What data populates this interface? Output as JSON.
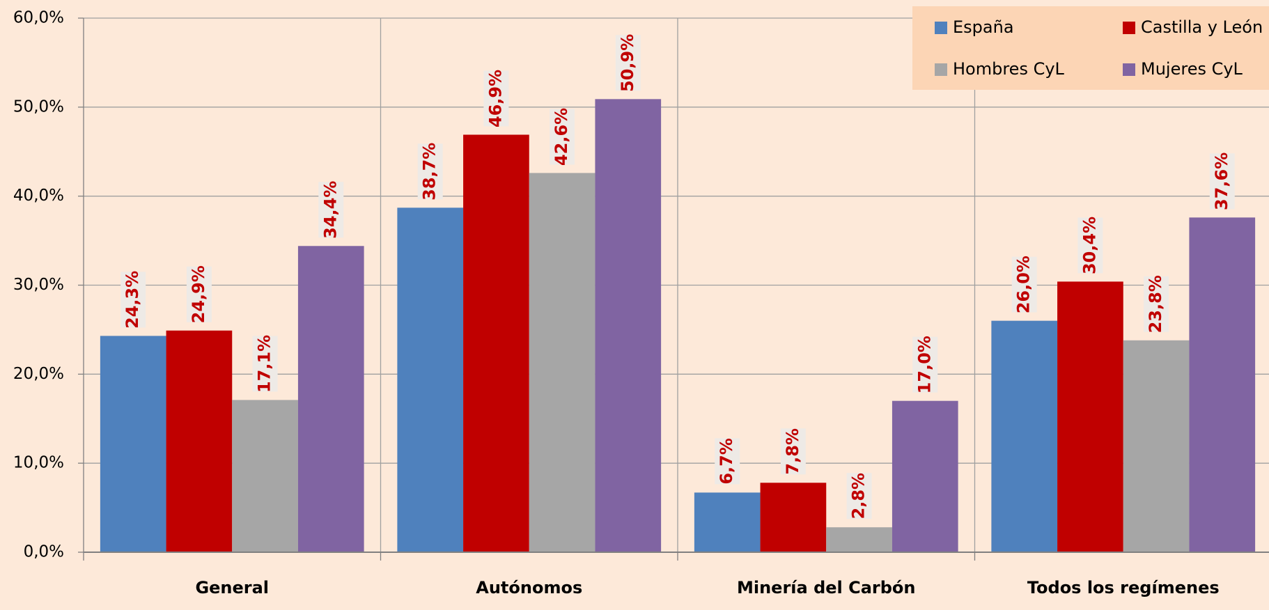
{
  "chart_data": {
    "type": "bar",
    "categories": [
      "General",
      "Autónomos",
      "Minería del Carbón",
      "Todos los regímenes"
    ],
    "series": [
      {
        "name": "España",
        "color": "#4f81bd",
        "values": [
          24.3,
          38.7,
          6.7,
          26.0
        ],
        "value_labels": [
          "24,3%",
          "38,7%",
          "6,7%",
          "26,0%"
        ]
      },
      {
        "name": "Castilla y León",
        "color": "#c00000",
        "values": [
          24.9,
          46.9,
          7.8,
          30.4
        ],
        "value_labels": [
          "24,9%",
          "46,9%",
          "7,8%",
          "30,4%"
        ]
      },
      {
        "name": "Hombres CyL",
        "color": "#a6a6a6",
        "values": [
          17.1,
          42.6,
          2.8,
          23.8
        ],
        "value_labels": [
          "17,1%",
          "42,6%",
          "2,8%",
          "23,8%"
        ]
      },
      {
        "name": "Mujeres CyL",
        "color": "#8064a2",
        "values": [
          34.4,
          50.9,
          17.0,
          37.6
        ],
        "value_labels": [
          "34,4%",
          "50,9%",
          "17,0%",
          "37,6%"
        ]
      }
    ],
    "ylim": [
      0,
      60
    ],
    "yticks": [
      {
        "value": 0,
        "label": "0,0%"
      },
      {
        "value": 10,
        "label": "10,0%"
      },
      {
        "value": 20,
        "label": "20,0%"
      },
      {
        "value": 30,
        "label": "30,0%"
      },
      {
        "value": 40,
        "label": "40,0%"
      },
      {
        "value": 50,
        "label": "50,0%"
      },
      {
        "value": 60,
        "label": "60,0%"
      }
    ],
    "grid": true,
    "legend": "top-right"
  }
}
